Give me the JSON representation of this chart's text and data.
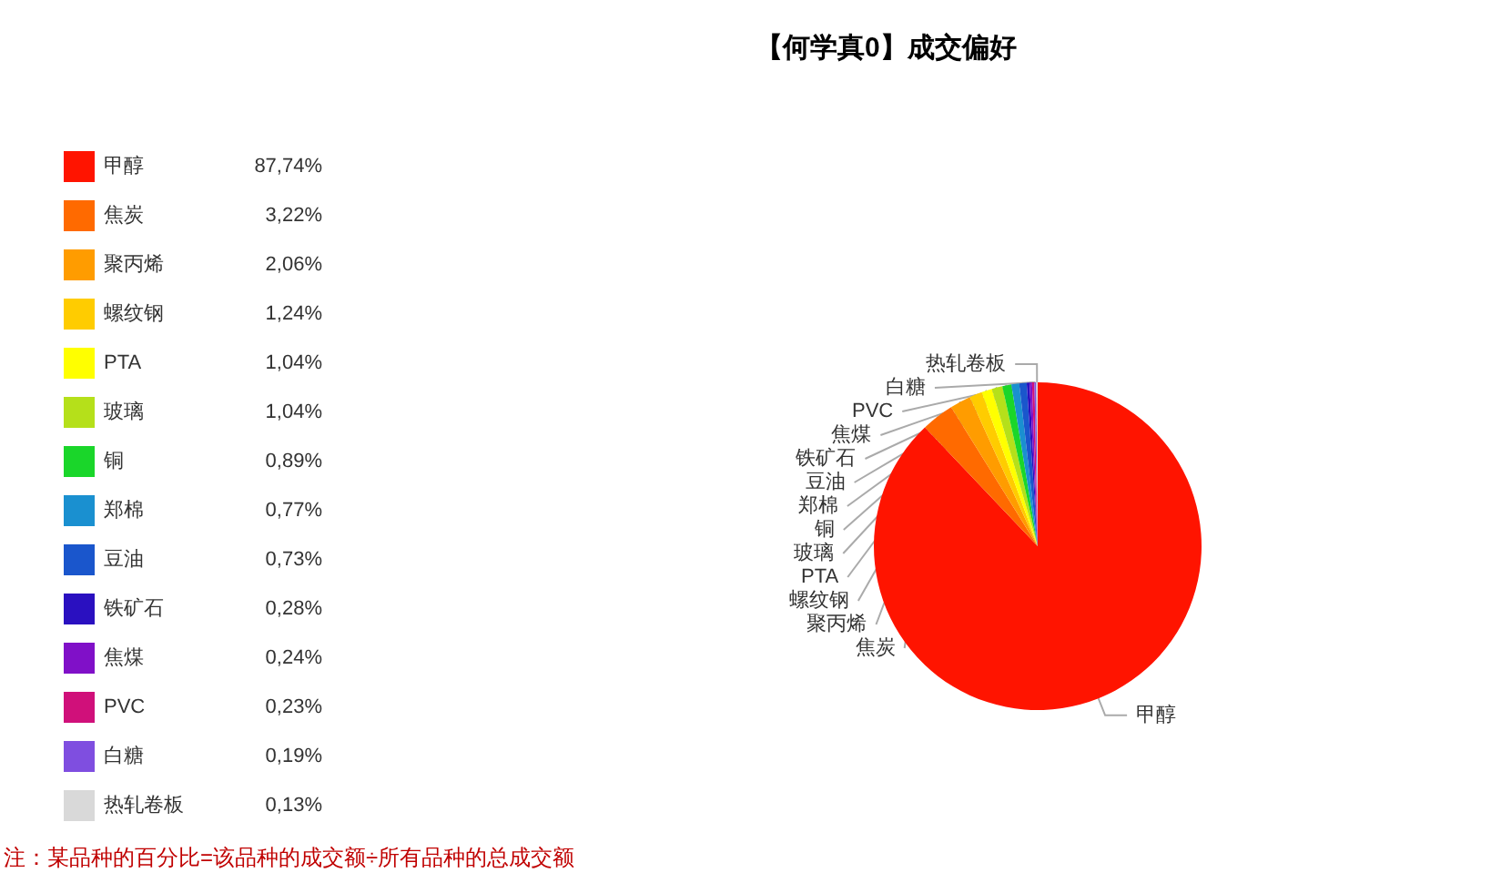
{
  "chart_data": {
    "type": "pie",
    "title": "【何学真0】成交偏好",
    "categories": [
      "甲醇",
      "焦炭",
      "聚丙烯",
      "螺纹钢",
      "PTA",
      "玻璃",
      "铜",
      "郑棉",
      "豆油",
      "铁矿石",
      "焦煤",
      "PVC",
      "白糖",
      "热轧卷板"
    ],
    "values": [
      87.74,
      3.22,
      2.06,
      1.24,
      1.04,
      1.04,
      0.89,
      0.77,
      0.73,
      0.28,
      0.24,
      0.23,
      0.19,
      0.13
    ],
    "value_labels": [
      "87,74%",
      "3,22%",
      "2,06%",
      "1,24%",
      "1,04%",
      "1,04%",
      "0,89%",
      "0,77%",
      "0,73%",
      "0,28%",
      "0,24%",
      "0,23%",
      "0,19%",
      "0,13%"
    ],
    "colors": [
      "#ff1400",
      "#ff6a00",
      "#ff9c00",
      "#ffcc00",
      "#ffff00",
      "#b5e01a",
      "#1ad62a",
      "#1a90d0",
      "#1a56cc",
      "#2a10c0",
      "#8010c8",
      "#d0107a",
      "#7f4ee0",
      "#d9d9d9"
    ],
    "legend": "left",
    "annotations": [
      "注：某品种的百分比=该品种的成交额÷所有品种的总成交额"
    ]
  }
}
